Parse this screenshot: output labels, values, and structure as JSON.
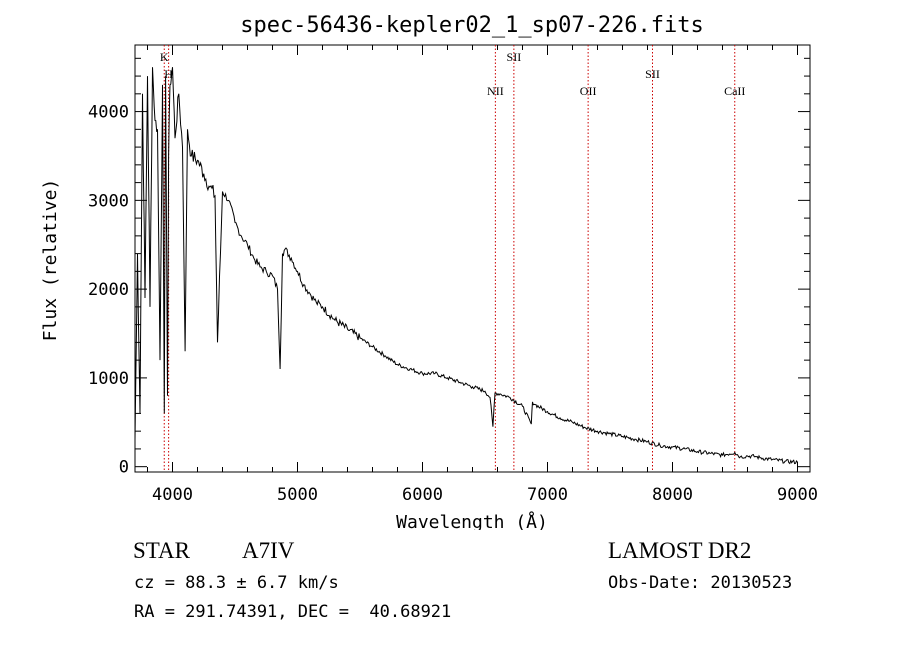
{
  "chart_data": {
    "type": "line",
    "title": "spec-56436-kepler02_1_sp07-226.fits",
    "xlabel": "Wavelength (Å)",
    "ylabel": "Flux (relative)",
    "xlim": [
      3700,
      9100
    ],
    "ylim": [
      -60,
      4750
    ],
    "xticks": [
      4000,
      5000,
      6000,
      7000,
      8000,
      9000
    ],
    "yticks": [
      0,
      1000,
      2000,
      3000,
      4000
    ],
    "grid": false,
    "line_color": "#000000",
    "marker_color": "#cc0000",
    "series": [
      {
        "x": [
          3700,
          3720,
          3740,
          3760,
          3780,
          3800,
          3820,
          3840,
          3860,
          3880,
          3900,
          3920,
          3934,
          3945,
          3960,
          3969,
          3980,
          4000,
          4020,
          4050,
          4080,
          4101,
          4120,
          4150,
          4200,
          4250,
          4300,
          4340,
          4360,
          4400,
          4450,
          4500,
          4550,
          4600,
          4650,
          4700,
          4750,
          4800,
          4840,
          4861,
          4880,
          4900,
          4950,
          5000,
          5050,
          5100,
          5150,
          5200,
          5300,
          5400,
          5500,
          5600,
          5700,
          5800,
          5900,
          6000,
          6100,
          6200,
          6300,
          6400,
          6500,
          6540,
          6563,
          6580,
          6620,
          6700,
          6800,
          6870,
          6880,
          6900,
          7000,
          7100,
          7200,
          7300,
          7400,
          7500,
          7600,
          7700,
          7800,
          7900,
          8000,
          8100,
          8200,
          8300,
          8400,
          8498,
          8542,
          8600,
          8662,
          8700,
          8800,
          8900,
          9000
        ],
        "y": [
          300,
          2400,
          600,
          4200,
          1900,
          4400,
          1800,
          4500,
          3900,
          3800,
          1200,
          4300,
          600,
          4400,
          800,
          3500,
          4300,
          4500,
          3700,
          4200,
          3600,
          1300,
          3800,
          3500,
          3450,
          3300,
          3150,
          3050,
          1400,
          3100,
          3000,
          2750,
          2600,
          2500,
          2350,
          2250,
          2200,
          2150,
          2000,
          1100,
          2400,
          2450,
          2350,
          2200,
          2050,
          1950,
          1850,
          1800,
          1650,
          1550,
          1450,
          1350,
          1250,
          1150,
          1100,
          1050,
          1050,
          1000,
          950,
          900,
          850,
          780,
          450,
          830,
          820,
          780,
          680,
          480,
          730,
          700,
          620,
          550,
          500,
          440,
          400,
          370,
          340,
          310,
          280,
          240,
          220,
          200,
          170,
          150,
          130,
          160,
          110,
          120,
          115,
          100,
          80,
          60,
          50
        ]
      }
    ],
    "lines": [
      {
        "label": "K",
        "wavelength": 3934
      },
      {
        "label": "H",
        "wavelength": 3969
      },
      {
        "label": "NII",
        "wavelength": 6583
      },
      {
        "label": "SII",
        "wavelength": 6731
      },
      {
        "label": "OII",
        "wavelength": 7325
      },
      {
        "label": "SII",
        "wavelength": 7840
      },
      {
        "label": "CaII",
        "wavelength": 8498
      }
    ]
  },
  "info": {
    "object_class": "STAR",
    "subclass": "A7IV",
    "survey": "LAMOST DR2",
    "cz": "cz = 88.3 ± 6.7 km/s",
    "obs_date": "Obs-Date: 20130523",
    "coords": "RA = 291.74391, DEC =  40.68921"
  }
}
